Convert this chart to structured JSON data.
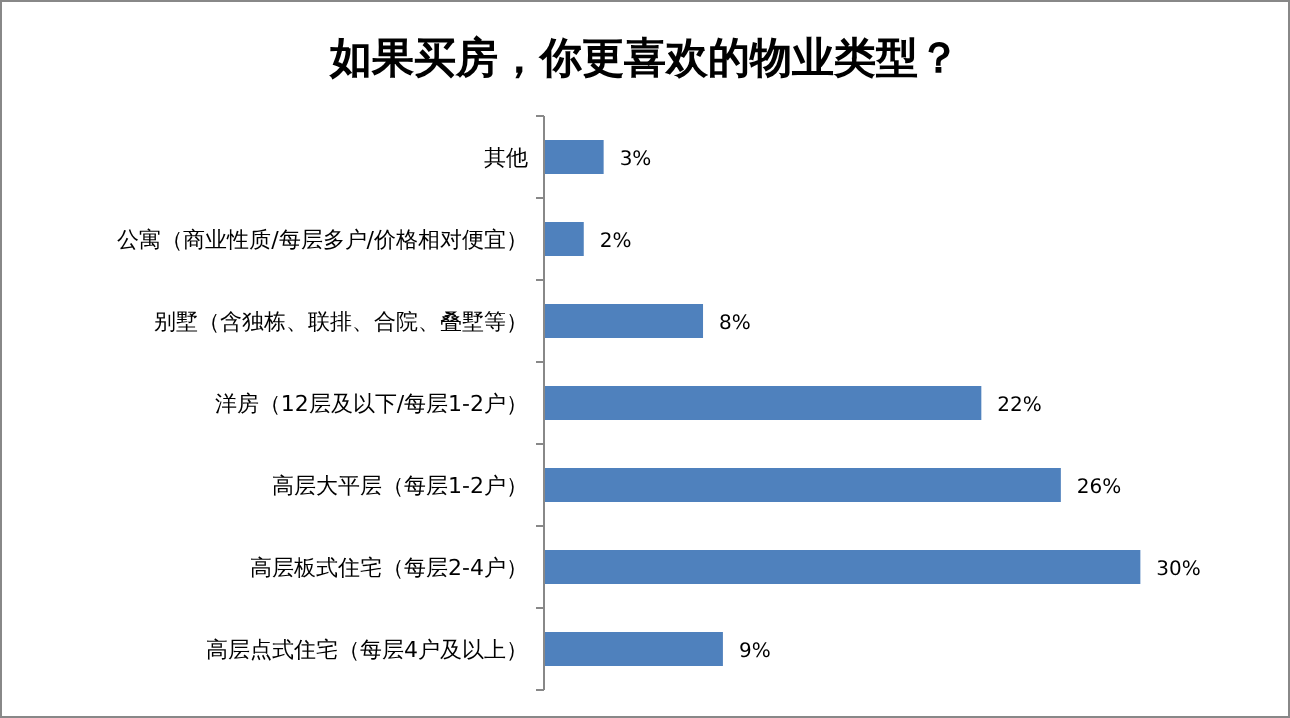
{
  "chart_data": {
    "type": "bar",
    "orientation": "horizontal",
    "title": "如果买房，你更喜欢的物业类型？",
    "categories": [
      "其他",
      "公寓（商业性质/每层多户/价格相对便宜）",
      "别墅（含独栋、联排、合院、叠墅等）",
      "洋房（12层及以下/每层1-2户）",
      "高层大平层（每层1-2户）",
      "高层板式住宅（每层2-4户）",
      "高层点式住宅（每层4户及以上）"
    ],
    "values": [
      3,
      2,
      8,
      22,
      26,
      30,
      9
    ],
    "value_labels": [
      "3%",
      "2%",
      "8%",
      "22%",
      "26%",
      "30%",
      "9%"
    ],
    "color": "#4f81bd"
  }
}
